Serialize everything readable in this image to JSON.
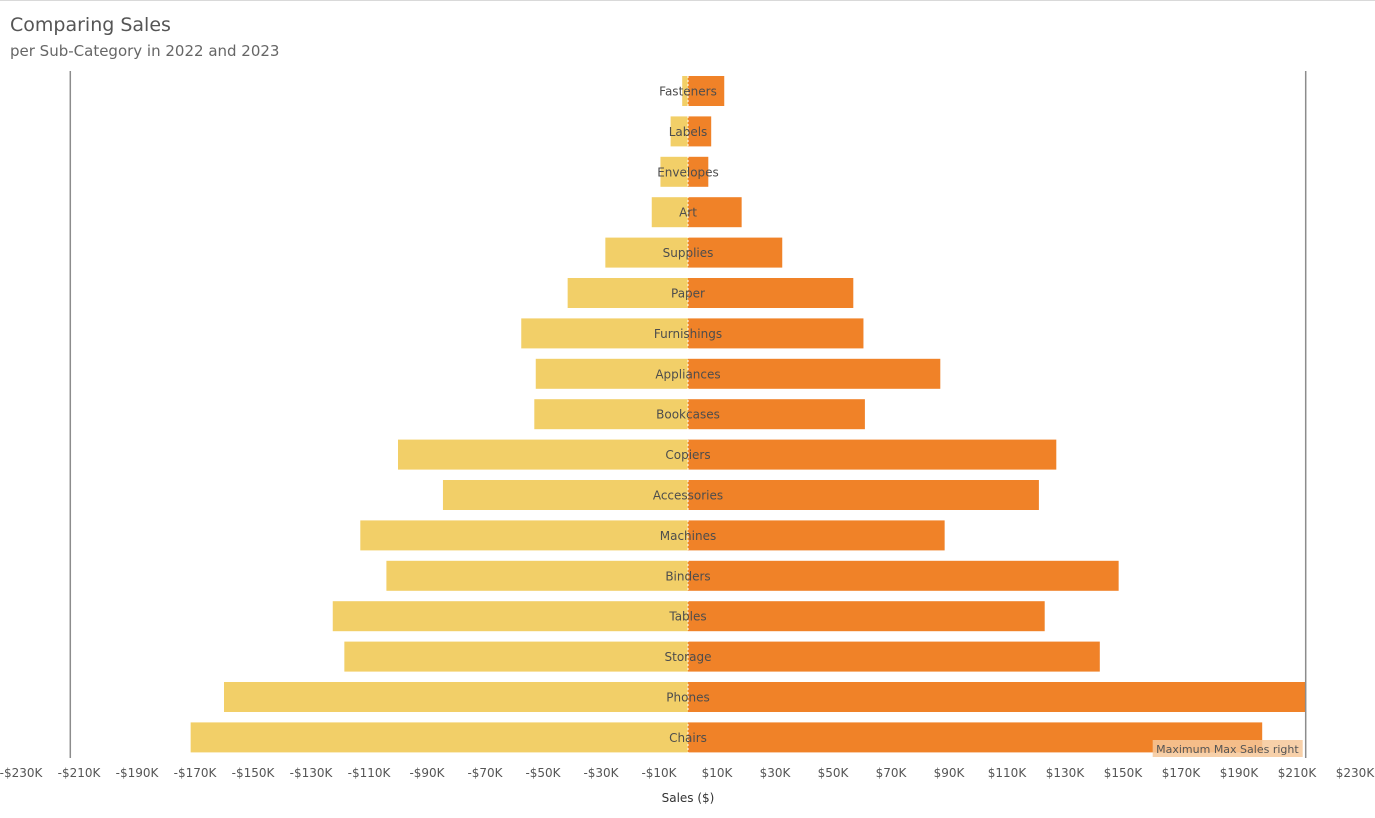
{
  "header": {
    "title": "Comparing Sales",
    "subtitle": "per Sub-Category in 2022 and 2023"
  },
  "colors": {
    "left_series": "#f2cf68",
    "right_series": "#f08228",
    "reference_line": "#8c8c8c",
    "center_line": "#ffffff",
    "annotation_bg": "#f6c89a"
  },
  "chart_data": {
    "type": "bar",
    "orientation": "horizontal-diverging",
    "xlabel": "Sales ($)",
    "xlim": [
      -236000,
      236000
    ],
    "x_ticks": [
      -230,
      -210,
      -190,
      -170,
      -150,
      -130,
      -110,
      -90,
      -70,
      -50,
      -30,
      -10,
      10,
      30,
      50,
      70,
      90,
      110,
      130,
      150,
      170,
      190,
      210,
      230
    ],
    "x_tick_labels": [
      "-$230K",
      "-$210K",
      "-$190K",
      "-$170K",
      "-$150K",
      "-$130K",
      "-$110K",
      "-$90K",
      "-$70K",
      "-$50K",
      "-$30K",
      "-$10K",
      "$10K",
      "$30K",
      "$50K",
      "$70K",
      "$90K",
      "$110K",
      "$130K",
      "$150K",
      "$170K",
      "$190K",
      "$210K",
      "$230K"
    ],
    "categories": [
      "Fasteners",
      "Labels",
      "Envelopes",
      "Art",
      "Supplies",
      "Paper",
      "Furnishings",
      "Appliances",
      "Bookcases",
      "Copiers",
      "Accessories",
      "Machines",
      "Binders",
      "Tables",
      "Storage",
      "Phones",
      "Chairs"
    ],
    "series": [
      {
        "values": [
          -2000,
          -6000,
          -9500,
          -12500,
          -28500,
          -41500,
          -57500,
          -52500,
          -53000,
          -100000,
          -84500,
          -113000,
          -104000,
          -122500,
          -118500,
          -160000,
          -171500
        ]
      },
      {
        "values": [
          12500,
          8000,
          7000,
          18500,
          32500,
          57000,
          60500,
          87000,
          61000,
          127000,
          121000,
          88500,
          148500,
          123000,
          142000,
          213000,
          198000
        ]
      }
    ],
    "reference_lines": [
      -213000,
      213000
    ],
    "reference_annotation": "Maximum Max Sales right",
    "grid": false,
    "legend": "none"
  }
}
